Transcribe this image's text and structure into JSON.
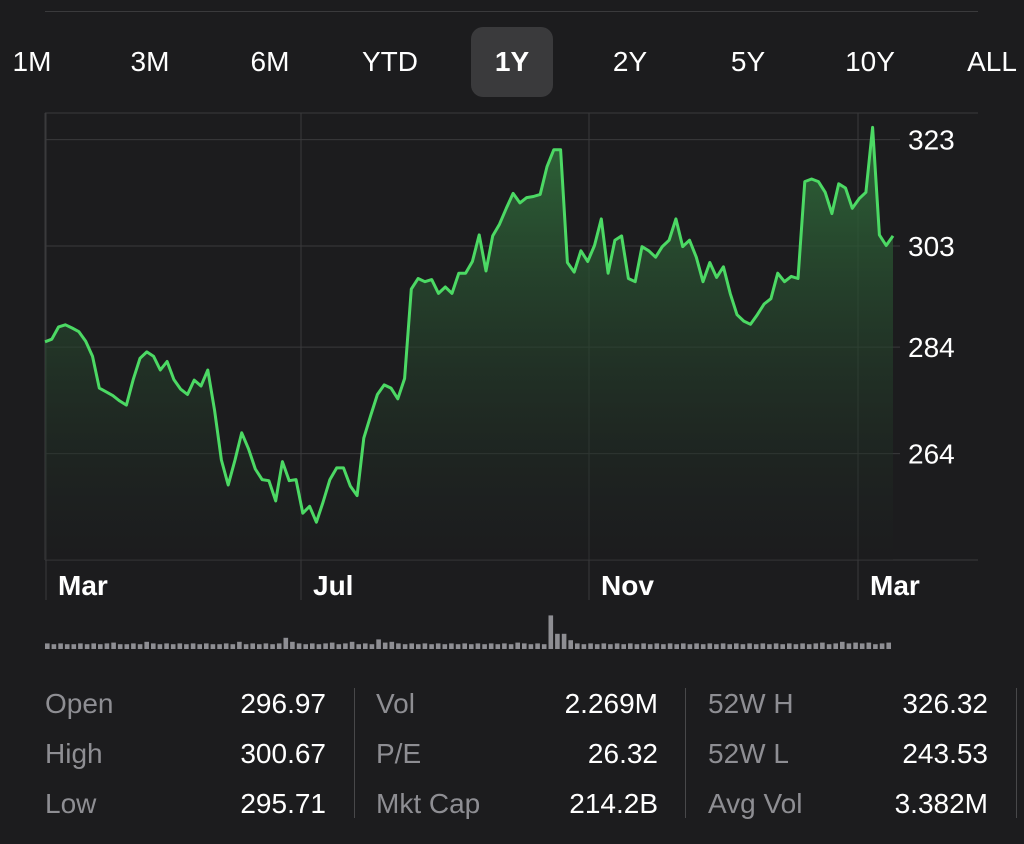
{
  "ranges": [
    {
      "label": "1M",
      "active": false
    },
    {
      "label": "3M",
      "active": false
    },
    {
      "label": "6M",
      "active": false
    },
    {
      "label": "YTD",
      "active": false
    },
    {
      "label": "1Y",
      "active": true
    },
    {
      "label": "2Y",
      "active": false
    },
    {
      "label": "5Y",
      "active": false
    },
    {
      "label": "10Y",
      "active": false
    },
    {
      "label": "ALL",
      "active": false
    }
  ],
  "colors": {
    "line": "#4cd964",
    "fill_top": "#2f6b3a",
    "grid": "#3a3a3c",
    "background": "#1c1c1e",
    "volume": "#8e8e93"
  },
  "chart_data": {
    "type": "area",
    "title": "",
    "xlabel": "",
    "ylabel": "",
    "y_ticks": [
      323,
      303,
      284,
      264
    ],
    "ylim": [
      244,
      328
    ],
    "x_tick_labels": [
      "Mar",
      "Jul",
      "Nov",
      "Mar"
    ],
    "grid": true,
    "series": [
      {
        "values": [
          285,
          285.5,
          287.8,
          288.2,
          287.6,
          286.9,
          285.1,
          282.3,
          276.3,
          275.6,
          274.9,
          273.9,
          273.1,
          277.9,
          281.9,
          283.1,
          282.3,
          279.7,
          281.3,
          277.9,
          276.1,
          275.1,
          277.8,
          276.7,
          279.7,
          272.1,
          262.8,
          258.1,
          262.8,
          267.9,
          264.9,
          261.1,
          259.1,
          258.9,
          255.1,
          262.5,
          258.9,
          259.1,
          252.8,
          254.1,
          251.1,
          254.9,
          259.1,
          261.3,
          261.3,
          257.9,
          256.1,
          266.9,
          271.1,
          275.1,
          276.9,
          276.3,
          274.3,
          278.1,
          294.9,
          296.9,
          296.3,
          296.7,
          294.1,
          295.3,
          294.1,
          297.9,
          297.9,
          300.1,
          305.1,
          298.3,
          304.9,
          307.1,
          310.1,
          312.9,
          311.1,
          312.1,
          312.3,
          312.7,
          317.9,
          321.1,
          321.1,
          299.9,
          298.1,
          302.1,
          300.1,
          303.1,
          308.1,
          297.9,
          304.1,
          304.9,
          296.9,
          296.3,
          302.9,
          302.1,
          300.9,
          302.9,
          304.1,
          308.1,
          302.9,
          304.1,
          300.9,
          296.3,
          299.9,
          297.1,
          299.1,
          294.1,
          290.1,
          288.9,
          288.3,
          290.1,
          292.1,
          293.1,
          297.9,
          296.3,
          297.3,
          296.9,
          315.1,
          315.6,
          315.1,
          313.1,
          309.1,
          314.7,
          313.9,
          310.1,
          311.9,
          313.1,
          325.3,
          305.1,
          303.1,
          304.9
        ]
      }
    ],
    "volume": {
      "values": [
        0.7,
        0.6,
        0.7,
        0.6,
        0.6,
        0.7,
        0.6,
        0.7,
        0.6,
        0.7,
        0.8,
        0.6,
        0.6,
        0.7,
        0.6,
        0.9,
        0.7,
        0.6,
        0.7,
        0.6,
        0.7,
        0.6,
        0.7,
        0.6,
        0.7,
        0.6,
        0.6,
        0.7,
        0.6,
        0.9,
        0.6,
        0.7,
        0.6,
        0.7,
        0.6,
        0.7,
        1.4,
        0.9,
        0.7,
        0.6,
        0.7,
        0.6,
        0.7,
        0.8,
        0.6,
        0.7,
        0.9,
        0.6,
        0.7,
        0.6,
        1.2,
        0.8,
        0.9,
        0.7,
        0.6,
        0.7,
        0.6,
        0.7,
        0.6,
        0.7,
        0.6,
        0.7,
        0.6,
        0.7,
        0.6,
        0.7,
        0.6,
        0.7,
        0.6,
        0.7,
        0.6,
        0.8,
        0.7,
        0.6,
        0.7,
        0.6,
        4.2,
        1.9,
        1.9,
        1.1,
        0.7,
        0.6,
        0.7,
        0.6,
        0.7,
        0.6,
        0.7,
        0.6,
        0.7,
        0.6,
        0.7,
        0.6,
        0.7,
        0.6,
        0.7,
        0.6,
        0.7,
        0.6,
        0.7,
        0.6,
        0.7,
        0.6,
        0.7,
        0.6,
        0.7,
        0.6,
        0.7,
        0.6,
        0.7,
        0.6,
        0.7,
        0.6,
        0.7,
        0.6,
        0.7,
        0.6,
        0.7,
        0.8,
        0.6,
        0.7,
        0.9,
        0.7,
        0.8,
        0.7,
        0.8,
        0.6,
        0.7,
        0.8
      ]
    }
  },
  "stats": [
    [
      {
        "label": "Open",
        "value": "296.97"
      },
      {
        "label": "High",
        "value": "300.67"
      },
      {
        "label": "Low",
        "value": "295.71"
      }
    ],
    [
      {
        "label": "Vol",
        "value": "2.269M"
      },
      {
        "label": "P/E",
        "value": "26.32"
      },
      {
        "label": "Mkt Cap",
        "value": "214.2B"
      }
    ],
    [
      {
        "label": "52W H",
        "value": "326.32"
      },
      {
        "label": "52W L",
        "value": "243.53"
      },
      {
        "label": "Avg Vol",
        "value": "3.382M"
      }
    ]
  ]
}
